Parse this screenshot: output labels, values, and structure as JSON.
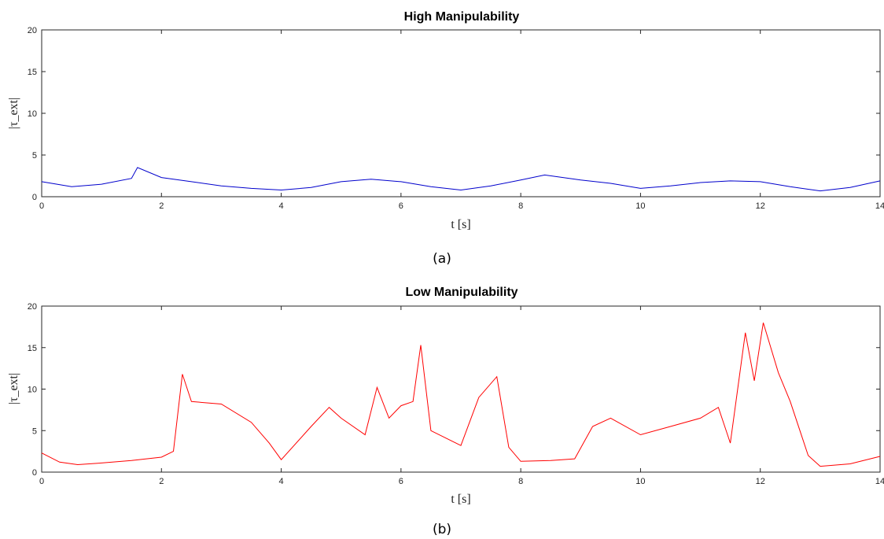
{
  "figure": {
    "captions": [
      "(a)",
      "(b)"
    ]
  },
  "chart_data": [
    {
      "type": "line",
      "title": "High Manipulability",
      "xlabel": "t [s]",
      "ylabel": "|τ_ext|",
      "xlim": [
        0,
        14
      ],
      "ylim": [
        0,
        20
      ],
      "xticks": [
        0,
        2,
        4,
        6,
        8,
        10,
        12,
        14
      ],
      "yticks": [
        0,
        5,
        10,
        15,
        20
      ],
      "grid": false,
      "series": [
        {
          "color": "#0000cc",
          "x": [
            0,
            0.5,
            1,
            1.5,
            1.6,
            2,
            2.5,
            3,
            3.5,
            4,
            4.5,
            5,
            5.5,
            6,
            6.5,
            7,
            7.5,
            8,
            8.4,
            9,
            9.5,
            10,
            10.5,
            11,
            11.5,
            12,
            12.5,
            13,
            13.5,
            14
          ],
          "y": [
            1.8,
            1.2,
            1.5,
            2.2,
            3.5,
            2.3,
            1.8,
            1.3,
            1.0,
            0.8,
            1.1,
            1.8,
            2.1,
            1.8,
            1.2,
            0.8,
            1.3,
            2.0,
            2.6,
            2.0,
            1.6,
            1.0,
            1.3,
            1.7,
            1.9,
            1.8,
            1.2,
            0.7,
            1.1,
            1.9
          ]
        }
      ]
    },
    {
      "type": "line",
      "title": "Low Manipulability",
      "xlabel": "t [s]",
      "ylabel": "|τ_ext|",
      "xlim": [
        0,
        14
      ],
      "ylim": [
        0,
        20
      ],
      "xticks": [
        0,
        2,
        4,
        6,
        8,
        10,
        12,
        14
      ],
      "yticks": [
        0,
        5,
        10,
        15,
        20
      ],
      "grid": false,
      "series": [
        {
          "color": "#ff0000",
          "x": [
            0,
            0.3,
            0.6,
            1,
            1.5,
            2,
            2.2,
            2.35,
            2.5,
            3,
            3.5,
            3.8,
            4,
            4.5,
            4.8,
            5,
            5.4,
            5.6,
            5.8,
            6,
            6.2,
            6.33,
            6.5,
            7,
            7.3,
            7.6,
            7.8,
            8,
            8.5,
            8.9,
            9.2,
            9.5,
            10,
            10.5,
            11,
            11.3,
            11.5,
            11.75,
            11.9,
            12.05,
            12.3,
            12.5,
            12.8,
            13,
            13.5,
            14
          ],
          "y": [
            2.3,
            1.2,
            0.9,
            1.1,
            1.4,
            1.8,
            2.5,
            11.8,
            8.5,
            8.2,
            6.0,
            3.5,
            1.5,
            5.5,
            7.8,
            6.5,
            4.5,
            10.2,
            6.5,
            8.0,
            8.5,
            15.3,
            5.0,
            3.2,
            9.0,
            11.5,
            3.0,
            1.3,
            1.4,
            1.6,
            5.5,
            6.5,
            4.5,
            5.5,
            6.5,
            7.8,
            3.5,
            16.8,
            11.0,
            18.0,
            12.0,
            8.5,
            2.0,
            0.7,
            1.0,
            1.9
          ]
        }
      ]
    }
  ]
}
